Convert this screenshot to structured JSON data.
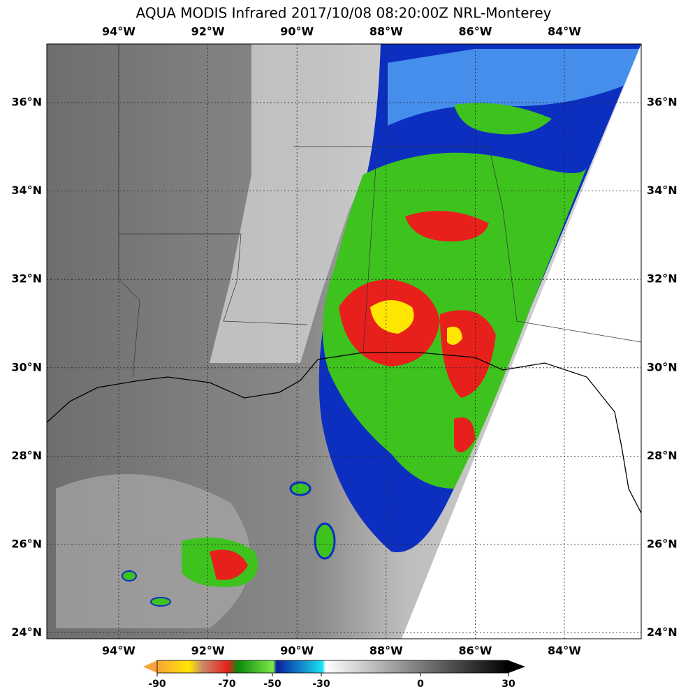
{
  "title": "AQUA MODIS Infrared 2017/10/08 08:20:00Z NRL-Monterey",
  "map": {
    "lon_labels": [
      "94°W",
      "92°W",
      "90°W",
      "88°W",
      "86°W",
      "84°W"
    ],
    "lat_labels": [
      "36°N",
      "34°N",
      "32°N",
      "30°N",
      "28°N",
      "26°N",
      "24°N"
    ]
  },
  "colorbar": {
    "ticks": [
      -90,
      -70,
      -50,
      -30,
      0,
      30
    ]
  }
}
